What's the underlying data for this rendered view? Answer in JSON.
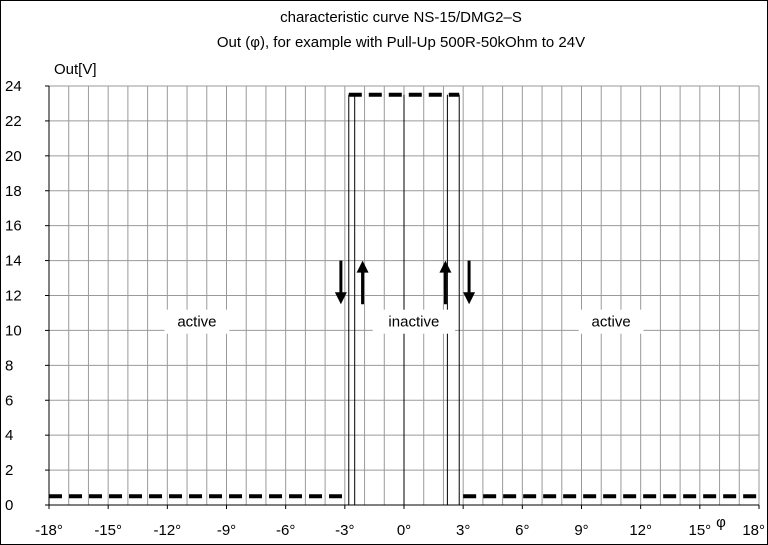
{
  "chart_data": {
    "type": "line",
    "title": "characteristic curve NS-15/DMG2–S",
    "subtitle": "Out (φ), for example with Pull-Up 500R-50kOhm to 24V",
    "ylabel": "Out[V]",
    "xlabel": "φ",
    "xlim": [
      -18,
      18
    ],
    "ylim": [
      0,
      24
    ],
    "grid": true,
    "x_ticks": [
      -18,
      -17,
      -16,
      -15,
      -14,
      -13,
      -12,
      -11,
      -10,
      -9,
      -8,
      -7,
      -6,
      -5,
      -4,
      -3,
      -2,
      -1,
      0,
      1,
      2,
      3,
      4,
      5,
      6,
      7,
      8,
      9,
      10,
      11,
      12,
      13,
      14,
      15,
      16,
      17,
      18
    ],
    "x_tick_labels": [
      "-18°",
      "-15°",
      "-12°",
      "-9°",
      "-6°",
      "-3°",
      "0°",
      "3°",
      "6°",
      "9°",
      "12°",
      "15°",
      "18°"
    ],
    "x_tick_label_values": [
      -18,
      -15,
      -12,
      -9,
      -6,
      -3,
      0,
      3,
      6,
      9,
      12,
      15,
      18
    ],
    "y_ticks": [
      0,
      2,
      4,
      6,
      8,
      10,
      12,
      14,
      16,
      18,
      20,
      22,
      24
    ],
    "y_tick_labels": [
      "0",
      "2",
      "4",
      "6",
      "8",
      "10",
      "12",
      "14",
      "16",
      "18",
      "20",
      "22",
      "24"
    ],
    "series": [
      {
        "style": "dashed",
        "color": "#000000",
        "segments": [
          {
            "x": [
              -18,
              -3
            ],
            "y": [
              0.5,
              0.5
            ]
          },
          {
            "x": [
              3,
              18
            ],
            "y": [
              0.5,
              0.5
            ]
          },
          {
            "x": [
              -2.8,
              2.8
            ],
            "y": [
              23.5,
              23.5
            ]
          }
        ]
      }
    ],
    "hysteresis_lines_x": [
      -2.8,
      -2.5,
      0,
      2.2,
      2.8
    ],
    "hysteresis_y_range": [
      0,
      23.5
    ],
    "arrows": [
      {
        "x": -3.2,
        "direction": "down",
        "y_from": 14,
        "y_to": 11.5
      },
      {
        "x": -2.1,
        "direction": "up",
        "y_from": 11.5,
        "y_to": 14
      },
      {
        "x": 2.1,
        "direction": "up",
        "y_from": 11.5,
        "y_to": 14
      },
      {
        "x": 3.3,
        "direction": "down",
        "y_from": 14,
        "y_to": 11.5
      }
    ],
    "annotations": [
      {
        "text": "active",
        "x": -10.5,
        "y": 10.5
      },
      {
        "text": "inactive",
        "x": 0.5,
        "y": 10.5
      },
      {
        "text": "active",
        "x": 10.5,
        "y": 10.5
      }
    ]
  }
}
